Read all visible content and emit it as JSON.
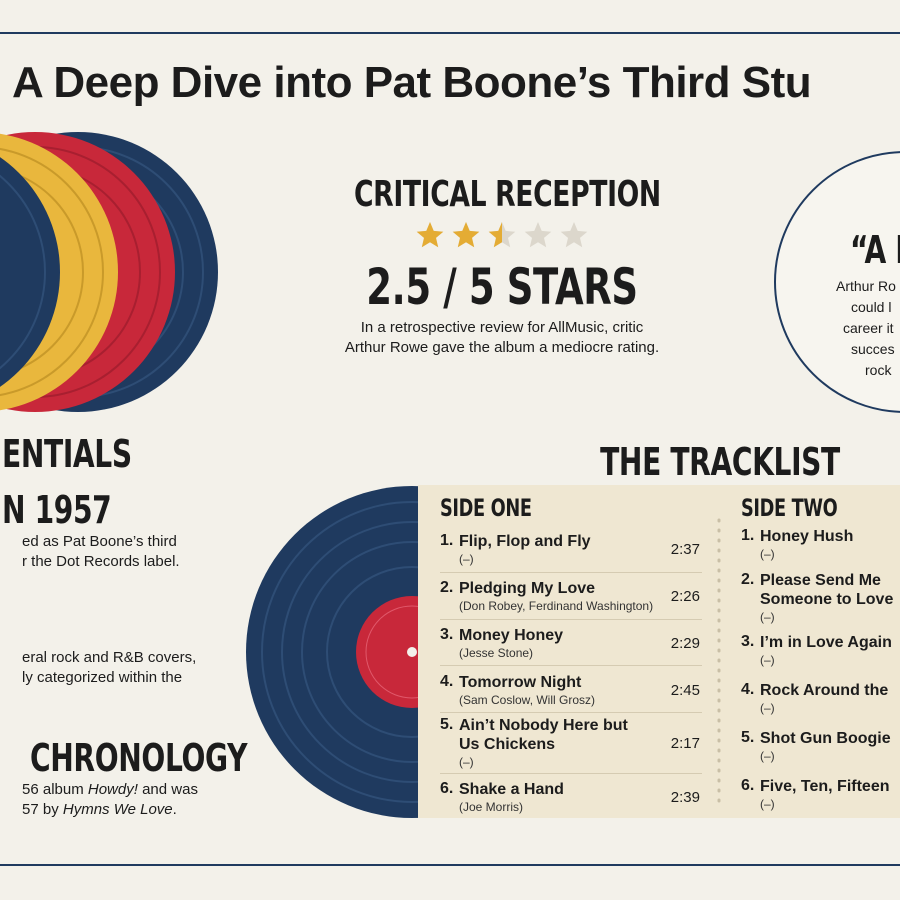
{
  "title": "A Deep Dive into Pat Boone’s Third Stu",
  "reception": {
    "heading": "CRITICAL RECEPTION",
    "rating": 2.5,
    "rating_max": 5,
    "score": "2.5 / 5 STARS",
    "text": [
      "In a retrospective review for AllMusic, critic",
      "Arthur Rowe gave the album a mediocre rating."
    ]
  },
  "quote": {
    "heading": "“A I",
    "lines": [
      "Arthur Ro",
      "could l",
      "career it",
      "succes",
      "rock"
    ]
  },
  "essentials": {
    "heading": "ENTIALS",
    "subheading": "N 1957",
    "text": [
      "ed as Pat Boone’s third",
      "r the Dot Records label."
    ],
    "text2": [
      "eral rock and R&B covers,",
      "ly categorized within the"
    ]
  },
  "chronology": {
    "heading": "CHRONOLOGY",
    "lines": [
      [
        "56 album ",
        "Howdy!",
        " and was"
      ],
      [
        "57 by ",
        "Hymns We Love",
        "."
      ]
    ]
  },
  "tracklist": {
    "heading": "THE TRACKLIST",
    "sides": [
      {
        "name": "SIDE ONE",
        "tracks": [
          {
            "number": "1.",
            "title": "Flip, Flop and Fly",
            "writers": "(–)",
            "duration": "2:37"
          },
          {
            "number": "2.",
            "title": "Pledging My Love",
            "writers": "(Don Robey, Ferdinand Washington)",
            "duration": "2:26"
          },
          {
            "number": "3.",
            "title": "Money Honey",
            "writers": "(Jesse Stone)",
            "duration": "2:29"
          },
          {
            "number": "4.",
            "title": "Tomorrow Night",
            "writers": "(Sam Coslow, Will Grosz)",
            "duration": "2:45"
          },
          {
            "number": "5.",
            "title": "Ain’t Nobody Here but Us Chickens",
            "writers": "(–)",
            "duration": "2:17"
          },
          {
            "number": "6.",
            "title": "Shake a Hand",
            "writers": "(Joe Morris)",
            "duration": "2:39"
          }
        ]
      },
      {
        "name": "SIDE TWO",
        "tracks": [
          {
            "number": "1.",
            "title": "Honey Hush",
            "writers": "(–)"
          },
          {
            "number": "2.",
            "title": "Please Send Me Someone to Love",
            "writers": "(–)"
          },
          {
            "number": "3.",
            "title": "I’m in Love Again",
            "writers": "(–)"
          },
          {
            "number": "4.",
            "title": "Rock Around the",
            "writers": "(–)"
          },
          {
            "number": "5.",
            "title": "Shot Gun Boogie",
            "writers": "(–)"
          },
          {
            "number": "6.",
            "title": "Five, Ten, Fifteen",
            "writers": "(–)"
          }
        ]
      }
    ]
  }
}
